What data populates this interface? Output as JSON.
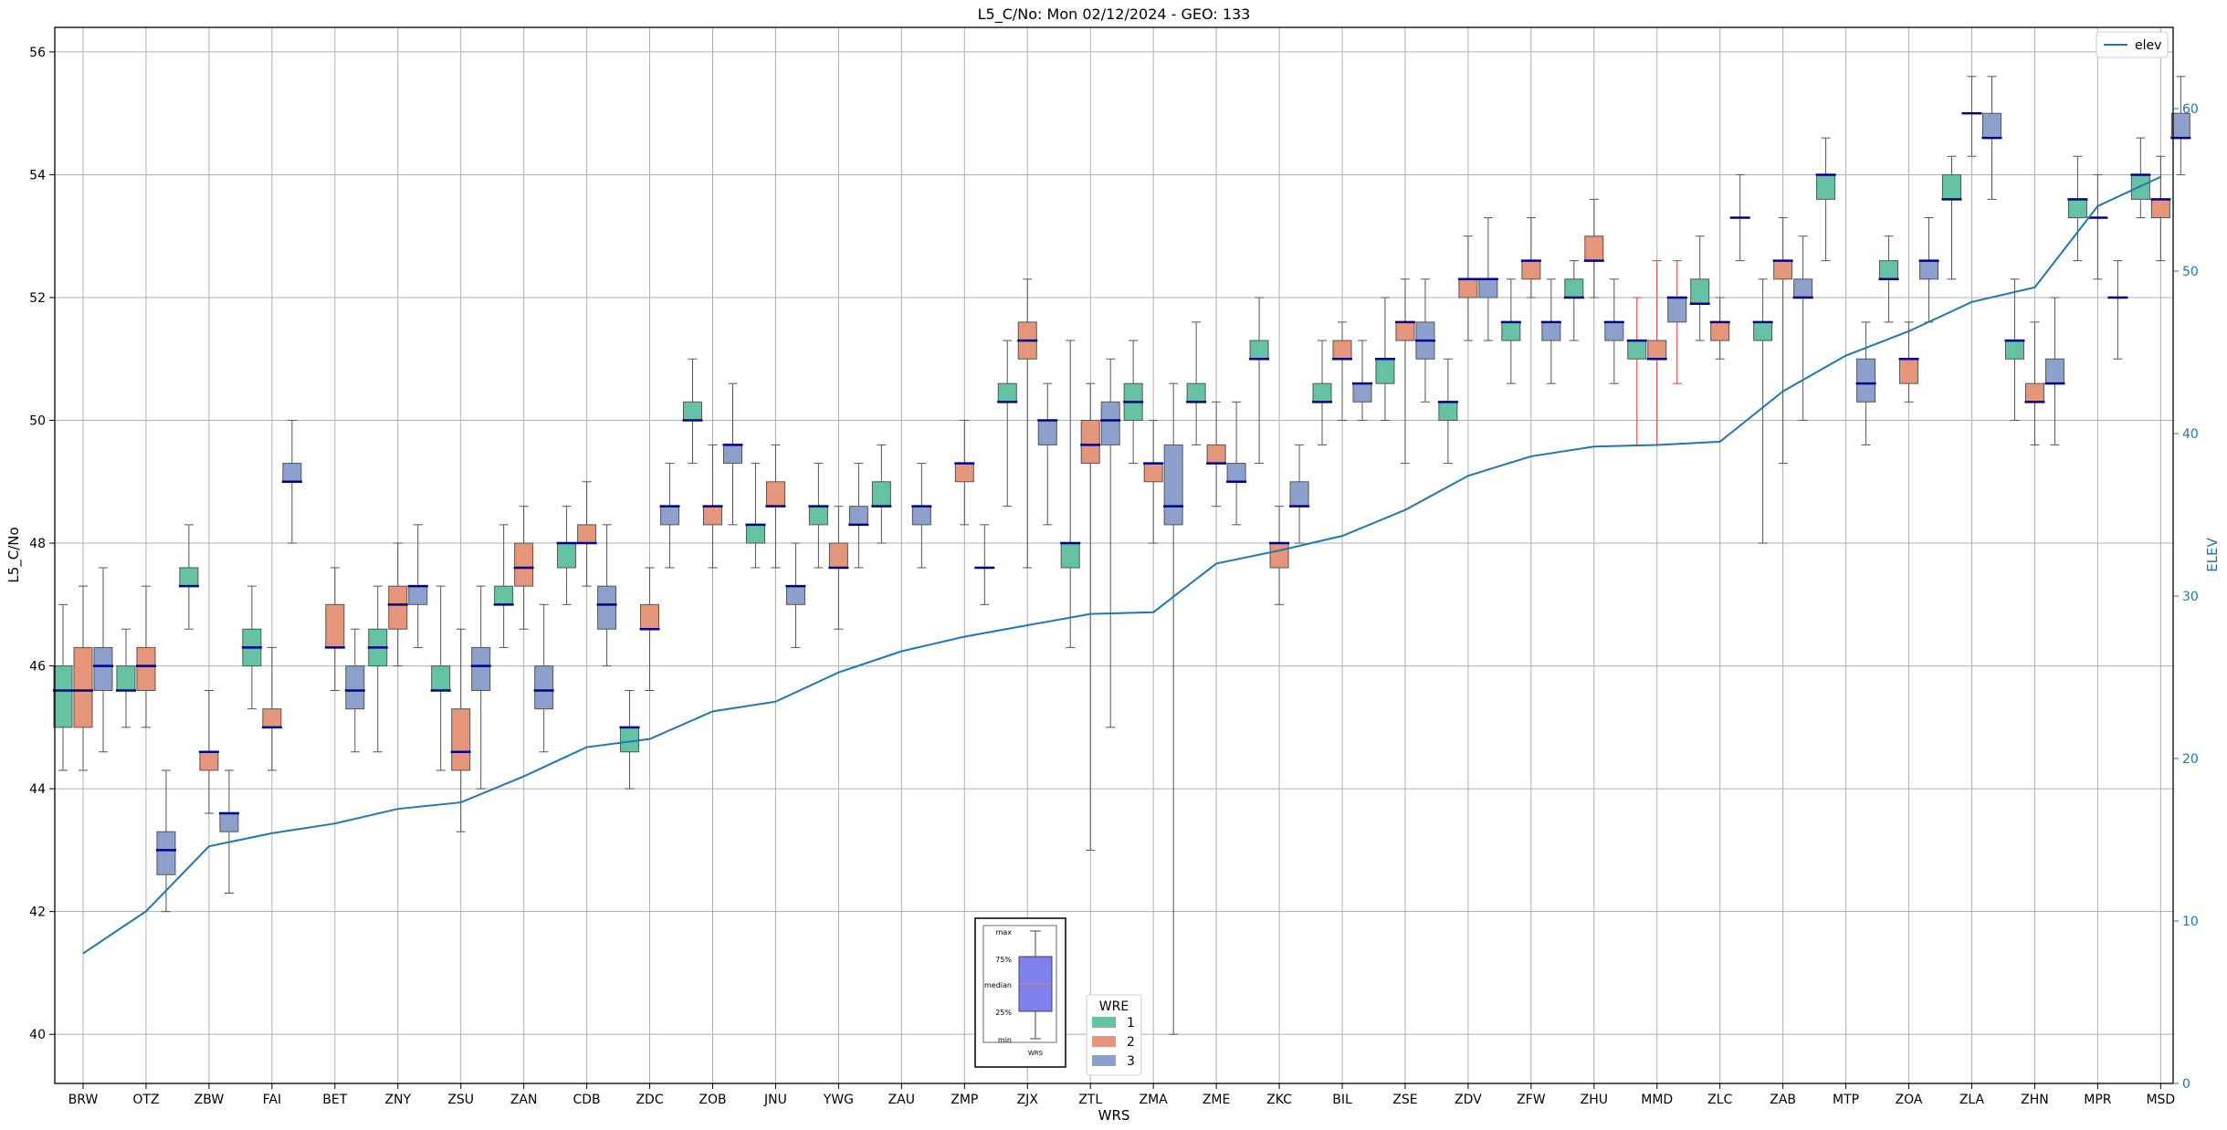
{
  "chart_data": {
    "type": "box",
    "title": "L5_C/No: Mon 02/12/2024 - GEO: 133",
    "xlabel": "WRS",
    "ylabel": "L5_C/No",
    "y2label": "ELEV",
    "ylim": [
      39.2,
      56.4
    ],
    "y2lim": [
      0,
      65
    ],
    "yticks": [
      40,
      42,
      44,
      46,
      48,
      50,
      52,
      54,
      56
    ],
    "y2ticks": [
      0,
      10,
      20,
      30,
      40,
      50,
      60
    ],
    "grid": true,
    "categories": [
      "BRW",
      "OTZ",
      "ZBW",
      "FAI",
      "BET",
      "ZNY",
      "ZSU",
      "ZAN",
      "CDB",
      "ZDC",
      "ZOB",
      "JNU",
      "YWG",
      "ZAU",
      "ZMP",
      "ZJX",
      "ZTL",
      "ZMA",
      "ZME",
      "ZKC",
      "BIL",
      "ZSE",
      "ZDV",
      "ZFW",
      "ZHU",
      "MMD",
      "ZLC",
      "ZAB",
      "MTP",
      "ZOA",
      "ZLA",
      "ZHN",
      "MPR",
      "MSD"
    ],
    "series": [
      {
        "name": "1",
        "color": "#66c2a5",
        "boxes": [
          {
            "min": 44.3,
            "q1": 45,
            "med": 45.6,
            "q3": 46,
            "max": 47
          },
          {
            "min": 45,
            "q1": 45.6,
            "med": 45.6,
            "q3": 46,
            "max": 46.6
          },
          {
            "min": 46.6,
            "q1": 47.3,
            "med": 47.3,
            "q3": 47.6,
            "max": 48.3
          },
          {
            "min": 45.3,
            "q1": 46,
            "med": 46.3,
            "q3": 46.6,
            "max": 47.3
          },
          null,
          {
            "min": 44.6,
            "q1": 46,
            "med": 46.3,
            "q3": 46.6,
            "max": 47.3
          },
          {
            "min": 44.3,
            "q1": 45.6,
            "med": 45.6,
            "q3": 46,
            "max": 47.3
          },
          {
            "min": 46.3,
            "q1": 47,
            "med": 47,
            "q3": 47.3,
            "max": 48.3
          },
          {
            "min": 47,
            "q1": 47.6,
            "med": 48,
            "q3": 48,
            "max": 48.6
          },
          {
            "min": 44,
            "q1": 44.6,
            "med": 45,
            "q3": 45,
            "max": 45.6
          },
          {
            "min": 49.3,
            "q1": 50,
            "med": 50,
            "q3": 50.3,
            "max": 51
          },
          {
            "min": 47.6,
            "q1": 48,
            "med": 48.3,
            "q3": 48.3,
            "max": 49.3
          },
          {
            "min": 47.6,
            "q1": 48.3,
            "med": 48.6,
            "q3": 48.6,
            "max": 49.3
          },
          {
            "min": 48,
            "q1": 48.6,
            "med": 48.6,
            "q3": 49,
            "max": 49.6
          },
          null,
          {
            "min": 48.6,
            "q1": 50.3,
            "med": 50.3,
            "q3": 50.6,
            "max": 51.3
          },
          {
            "min": 46.3,
            "q1": 47.6,
            "med": 48,
            "q3": 48,
            "max": 51.3
          },
          {
            "min": 49.3,
            "q1": 50,
            "med": 50.3,
            "q3": 50.6,
            "max": 51.3
          },
          {
            "min": 49.6,
            "q1": 50.3,
            "med": 50.3,
            "q3": 50.6,
            "max": 51.6
          },
          {
            "min": 49.3,
            "q1": 51,
            "med": 51,
            "q3": 51.3,
            "max": 52
          },
          {
            "min": 49.6,
            "q1": 50.3,
            "med": 50.3,
            "q3": 50.6,
            "max": 51.3
          },
          {
            "min": 50,
            "q1": 50.6,
            "med": 51,
            "q3": 51,
            "max": 52
          },
          {
            "min": 49.3,
            "q1": 50,
            "med": 50.3,
            "q3": 50.3,
            "max": 51
          },
          {
            "min": 50.6,
            "q1": 51.3,
            "med": 51.6,
            "q3": 51.6,
            "max": 52.3
          },
          {
            "min": 51.3,
            "q1": 52,
            "med": 52,
            "q3": 52.3,
            "max": 52.6
          },
          {
            "min": 49.6,
            "q1": 51,
            "med": 51.3,
            "q3": 51.3,
            "max": 52
          },
          {
            "min": 51.3,
            "q1": 51.9,
            "med": 51.9,
            "q3": 52.3,
            "max": 53
          },
          {
            "min": 48,
            "q1": 51.3,
            "med": 51.6,
            "q3": 51.6,
            "max": 52.3
          },
          {
            "min": 52.6,
            "q1": 53.6,
            "med": 54,
            "q3": 54,
            "max": 54.6
          },
          {
            "min": 51.6,
            "q1": 52.3,
            "med": 52.3,
            "q3": 52.6,
            "max": 53
          },
          {
            "min": 52.3,
            "q1": 53.6,
            "med": 53.6,
            "q3": 54,
            "max": 54.3
          },
          {
            "min": 50,
            "q1": 51,
            "med": 51.3,
            "q3": 51.3,
            "max": 52.3
          },
          {
            "min": 52.6,
            "q1": 53.3,
            "med": 53.6,
            "q3": 53.6,
            "max": 54.3
          },
          {
            "min": 53.3,
            "q1": 53.6,
            "med": 54,
            "q3": 54,
            "max": 54.6
          }
        ]
      },
      {
        "name": "2",
        "color": "#e5967a",
        "boxes": [
          {
            "min": 44.3,
            "q1": 45,
            "med": 45.6,
            "q3": 46.3,
            "max": 47.3
          },
          {
            "min": 45,
            "q1": 45.6,
            "med": 46,
            "q3": 46.3,
            "max": 47.3
          },
          {
            "min": 43.6,
            "q1": 44.3,
            "med": 44.6,
            "q3": 44.6,
            "max": 45.6
          },
          {
            "min": 44.3,
            "q1": 45,
            "med": 45,
            "q3": 45.3,
            "max": 46.3
          },
          {
            "min": 45.6,
            "q1": 46.3,
            "med": 46.3,
            "q3": 47,
            "max": 47.6
          },
          {
            "min": 46,
            "q1": 46.6,
            "med": 47,
            "q3": 47.3,
            "max": 48
          },
          {
            "min": 43.3,
            "q1": 44.3,
            "med": 44.6,
            "q3": 45.3,
            "max": 46.6
          },
          {
            "min": 46.6,
            "q1": 47.3,
            "med": 47.6,
            "q3": 48,
            "max": 48.6
          },
          {
            "min": 47.3,
            "q1": 48,
            "med": 48,
            "q3": 48.3,
            "max": 49
          },
          {
            "min": 45.6,
            "q1": 46.6,
            "med": 46.6,
            "q3": 47,
            "max": 47.6
          },
          {
            "min": 47.6,
            "q1": 48.3,
            "med": 48.6,
            "q3": 48.6,
            "max": 49.6
          },
          {
            "min": 47.6,
            "q1": 48.6,
            "med": 48.6,
            "q3": 49,
            "max": 49.6
          },
          {
            "min": 46.6,
            "q1": 47.6,
            "med": 47.6,
            "q3": 48,
            "max": 48.6
          },
          null,
          {
            "min": 48.3,
            "q1": 49,
            "med": 49.3,
            "q3": 49.3,
            "max": 50
          },
          {
            "min": 47.6,
            "q1": 51,
            "med": 51.3,
            "q3": 51.6,
            "max": 52.3
          },
          {
            "min": 43,
            "q1": 49.3,
            "med": 49.6,
            "q3": 50,
            "max": 50.6
          },
          {
            "min": 48,
            "q1": 49,
            "med": 49.3,
            "q3": 49.3,
            "max": 50
          },
          {
            "min": 48.6,
            "q1": 49.3,
            "med": 49.3,
            "q3": 49.6,
            "max": 50.3
          },
          {
            "min": 47,
            "q1": 47.6,
            "med": 48,
            "q3": 48,
            "max": 48.6
          },
          {
            "min": 50,
            "q1": 51,
            "med": 51,
            "q3": 51.3,
            "max": 51.6
          },
          {
            "min": 49.3,
            "q1": 51.3,
            "med": 51.6,
            "q3": 51.6,
            "max": 52.3
          },
          {
            "min": 51.3,
            "q1": 52,
            "med": 52.3,
            "q3": 52.3,
            "max": 53
          },
          {
            "min": 52,
            "q1": 52.3,
            "med": 52.6,
            "q3": 52.6,
            "max": 53.3
          },
          {
            "min": 52,
            "q1": 52.6,
            "med": 52.6,
            "q3": 53,
            "max": 53.6
          },
          {
            "min": 49.6,
            "q1": 51,
            "med": 51,
            "q3": 51.3,
            "max": 52.6
          },
          {
            "min": 51,
            "q1": 51.3,
            "med": 51.6,
            "q3": 51.6,
            "max": 52
          },
          {
            "min": 49.3,
            "q1": 52.3,
            "med": 52.6,
            "q3": 52.6,
            "max": 53.3
          },
          null,
          {
            "min": 50.3,
            "q1": 50.6,
            "med": 51,
            "q3": 51,
            "max": 51.6
          },
          {
            "min": 54.3,
            "q1": 55,
            "med": 55,
            "q3": 55,
            "max": 55.6
          },
          {
            "min": 49.6,
            "q1": 50.3,
            "med": 50.3,
            "q3": 50.6,
            "max": 51.6
          },
          {
            "min": 52.3,
            "q1": 53.3,
            "med": 53.3,
            "q3": 53.3,
            "max": 54
          },
          {
            "min": 52.6,
            "q1": 53.3,
            "med": 53.6,
            "q3": 53.6,
            "max": 54.3
          }
        ]
      },
      {
        "name": "3",
        "color": "#8da0cb",
        "boxes": [
          {
            "min": 44.6,
            "q1": 45.6,
            "med": 46,
            "q3": 46.3,
            "max": 47.6
          },
          {
            "min": 42,
            "q1": 42.6,
            "med": 43,
            "q3": 43.3,
            "max": 44.3
          },
          {
            "min": 42.3,
            "q1": 43.3,
            "med": 43.6,
            "q3": 43.6,
            "max": 44.3
          },
          {
            "min": 48,
            "q1": 49,
            "med": 49,
            "q3": 49.3,
            "max": 50
          },
          {
            "min": 44.6,
            "q1": 45.3,
            "med": 45.6,
            "q3": 46,
            "max": 46.6
          },
          {
            "min": 46.3,
            "q1": 47,
            "med": 47.3,
            "q3": 47.3,
            "max": 48.3
          },
          {
            "min": 44,
            "q1": 45.6,
            "med": 46,
            "q3": 46.3,
            "max": 47.3
          },
          {
            "min": 44.6,
            "q1": 45.3,
            "med": 45.6,
            "q3": 46,
            "max": 47
          },
          {
            "min": 46,
            "q1": 46.6,
            "med": 47,
            "q3": 47.3,
            "max": 48.3
          },
          {
            "min": 47.6,
            "q1": 48.3,
            "med": 48.6,
            "q3": 48.6,
            "max": 49.3
          },
          {
            "min": 48.3,
            "q1": 49.3,
            "med": 49.6,
            "q3": 49.6,
            "max": 50.6
          },
          {
            "min": 46.3,
            "q1": 47,
            "med": 47.3,
            "q3": 47.3,
            "max": 48
          },
          {
            "min": 47.6,
            "q1": 48.3,
            "med": 48.3,
            "q3": 48.6,
            "max": 49.3
          },
          {
            "min": 47.6,
            "q1": 48.3,
            "med": 48.6,
            "q3": 48.6,
            "max": 49.3
          },
          {
            "min": 47,
            "q1": 47.6,
            "med": 47.6,
            "q3": 47.6,
            "max": 48.3
          },
          {
            "min": 48.3,
            "q1": 49.6,
            "med": 50,
            "q3": 50,
            "max": 50.6
          },
          {
            "min": 45,
            "q1": 49.6,
            "med": 50,
            "q3": 50.3,
            "max": 51
          },
          {
            "min": 40,
            "q1": 48.3,
            "med": 48.6,
            "q3": 49.6,
            "max": 50.6
          },
          {
            "min": 48.3,
            "q1": 49,
            "med": 49,
            "q3": 49.3,
            "max": 50.3
          },
          {
            "min": 48,
            "q1": 48.6,
            "med": 48.6,
            "q3": 49,
            "max": 49.6
          },
          {
            "min": 50,
            "q1": 50.3,
            "med": 50.6,
            "q3": 50.6,
            "max": 51.3
          },
          {
            "min": 50.3,
            "q1": 51,
            "med": 51.3,
            "q3": 51.6,
            "max": 52.3
          },
          {
            "min": 51.3,
            "q1": 52,
            "med": 52.3,
            "q3": 52.3,
            "max": 53.3
          },
          {
            "min": 50.6,
            "q1": 51.3,
            "med": 51.6,
            "q3": 51.6,
            "max": 52.3
          },
          {
            "min": 50.6,
            "q1": 51.3,
            "med": 51.6,
            "q3": 51.6,
            "max": 52.3
          },
          {
            "min": 50.6,
            "q1": 51.6,
            "med": 52,
            "q3": 52,
            "max": 52.6
          },
          {
            "min": 52.6,
            "q1": 53.3,
            "med": 53.3,
            "q3": 53.3,
            "max": 54
          },
          {
            "min": 50,
            "q1": 52,
            "med": 52,
            "q3": 52.3,
            "max": 53
          },
          {
            "min": 49.6,
            "q1": 50.3,
            "med": 50.6,
            "q3": 51,
            "max": 51.6
          },
          {
            "min": 51.6,
            "q1": 52.3,
            "med": 52.6,
            "q3": 52.6,
            "max": 53.3
          },
          {
            "min": 53.6,
            "q1": 54.6,
            "med": 54.6,
            "q3": 55,
            "max": 55.6
          },
          {
            "min": 49.6,
            "q1": 50.6,
            "med": 50.6,
            "q3": 51,
            "max": 52
          },
          {
            "min": 51,
            "q1": 52,
            "med": 52,
            "q3": 52,
            "max": 52.6
          },
          {
            "min": 54,
            "q1": 54.6,
            "med": 54.6,
            "q3": 55,
            "max": 55.6
          }
        ]
      }
    ],
    "red_whisker_categories": [
      "MMD"
    ],
    "elev": {
      "name": "elev",
      "color": "#1f77b4",
      "values": [
        8,
        10.6,
        14.6,
        15.4,
        16,
        16.9,
        17.3,
        18.9,
        20.7,
        21.2,
        22.9,
        23.5,
        25.3,
        26.6,
        27.5,
        28.2,
        28.9,
        29,
        32,
        32.8,
        33.7,
        35.3,
        37.4,
        38.6,
        39.2,
        39.3,
        39.5,
        42.6,
        44.8,
        46.3,
        48.1,
        49,
        54,
        55.8
      ]
    },
    "legend_elev": "elev",
    "legend_wre_title": "WRE",
    "legend_wre_labels": [
      "1",
      "2",
      "3"
    ],
    "key": {
      "labels": [
        "max",
        "75%",
        "median",
        "25%",
        "min"
      ],
      "caption": "WRS"
    }
  }
}
